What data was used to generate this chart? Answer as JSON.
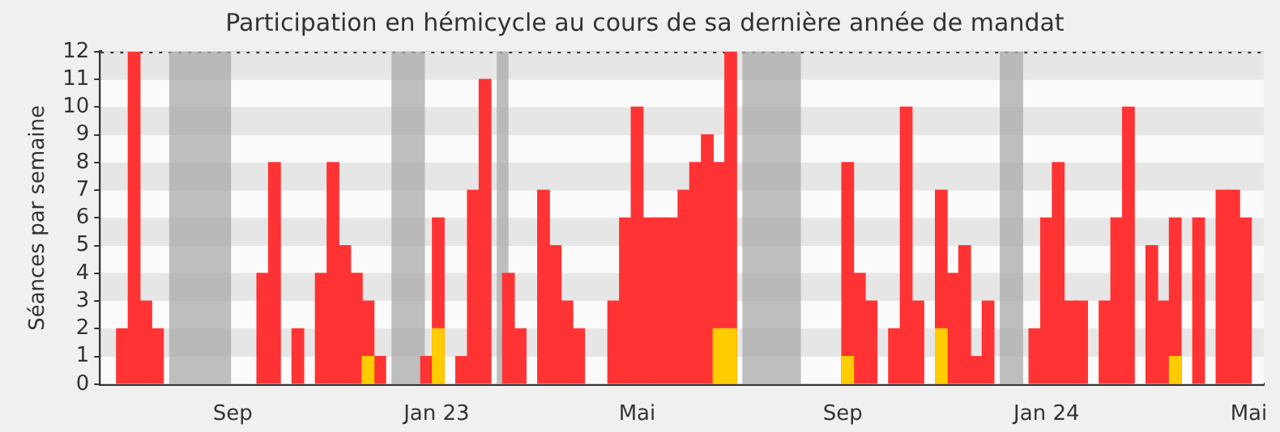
{
  "chart_data": {
    "type": "bar",
    "title": "Participation en hémicycle au cours de sa dernière année de mandat",
    "ylabel": "Séances par semaine",
    "xlim": [
      "2022-06-14",
      "2024-05-10"
    ],
    "xticks": [
      {
        "value": "2022-09-01",
        "label": "Sep"
      },
      {
        "value": "2023-01-01",
        "label": "Jan 23"
      },
      {
        "value": "2023-05-01",
        "label": "Mai"
      },
      {
        "value": "2023-09-01",
        "label": "Sep"
      },
      {
        "value": "2024-01-01",
        "label": "Jan 24"
      },
      {
        "value": "2024-05-01",
        "label": "Mai"
      }
    ],
    "ylim": [
      0,
      12
    ],
    "yticks": [
      0,
      1,
      2,
      3,
      4,
      5,
      6,
      7,
      8,
      9,
      10,
      11,
      12
    ],
    "grid": "y",
    "series": [
      {
        "color": "#ff3333",
        "x": [
          "2022-06-27",
          "2022-07-04",
          "2022-07-11",
          "2022-07-18",
          "2022-09-19",
          "2022-09-26",
          "2022-10-10",
          "2022-10-24",
          "2022-10-31",
          "2022-11-07",
          "2022-11-14",
          "2022-11-21",
          "2022-11-28",
          "2022-12-26",
          "2023-01-02",
          "2023-01-16",
          "2023-01-23",
          "2023-01-30",
          "2023-02-13",
          "2023-02-20",
          "2023-03-06",
          "2023-03-13",
          "2023-03-20",
          "2023-03-27",
          "2023-04-17",
          "2023-04-24",
          "2023-05-01",
          "2023-05-08",
          "2023-05-15",
          "2023-05-22",
          "2023-05-29",
          "2023-06-05",
          "2023-06-12",
          "2023-06-19",
          "2023-06-26",
          "2023-09-04",
          "2023-09-11",
          "2023-09-18",
          "2023-10-02",
          "2023-10-09",
          "2023-10-16",
          "2023-10-30",
          "2023-11-06",
          "2023-11-13",
          "2023-11-20",
          "2023-11-27",
          "2023-12-25",
          "2024-01-01",
          "2024-01-08",
          "2024-01-15",
          "2024-01-22",
          "2024-02-05",
          "2024-02-12",
          "2024-02-19",
          "2024-03-04",
          "2024-03-11",
          "2024-03-18",
          "2024-04-01",
          "2024-04-15",
          "2024-04-22",
          "2024-04-29"
        ],
        "values": [
          2,
          12,
          3,
          2,
          4,
          8,
          2,
          4,
          8,
          5,
          4,
          3,
          1,
          1,
          6,
          1,
          7,
          11,
          4,
          2,
          7,
          5,
          3,
          2,
          3,
          6,
          10,
          6,
          6,
          6,
          7,
          8,
          9,
          8,
          12,
          8,
          4,
          3,
          2,
          10,
          3,
          7,
          4,
          5,
          1,
          3,
          2,
          6,
          8,
          3,
          3,
          3,
          6,
          10,
          5,
          3,
          6,
          6,
          7,
          7,
          6
        ]
      },
      {
        "color": "#ffcc00",
        "x": [
          "2022-11-21",
          "2023-01-02",
          "2023-06-19",
          "2023-06-26",
          "2023-09-04",
          "2023-10-30",
          "2024-03-18"
        ],
        "values": [
          1,
          2,
          2,
          2,
          1,
          2,
          1
        ]
      }
    ],
    "bands": [
      {
        "axis": "x",
        "from": "2022-07-25",
        "to": "2022-08-31",
        "color": "#aaaaaa"
      },
      {
        "axis": "x",
        "from": "2022-12-05",
        "to": "2022-12-25",
        "color": "#aaaaaa"
      },
      {
        "axis": "x",
        "from": "2023-02-06",
        "to": "2023-02-13",
        "color": "#aaaaaa"
      },
      {
        "axis": "x",
        "from": "2023-07-03",
        "to": "2023-08-07",
        "color": "#aaaaaa"
      },
      {
        "axis": "x",
        "from": "2023-12-04",
        "to": "2023-12-18",
        "color": "#aaaaaa"
      }
    ]
  }
}
